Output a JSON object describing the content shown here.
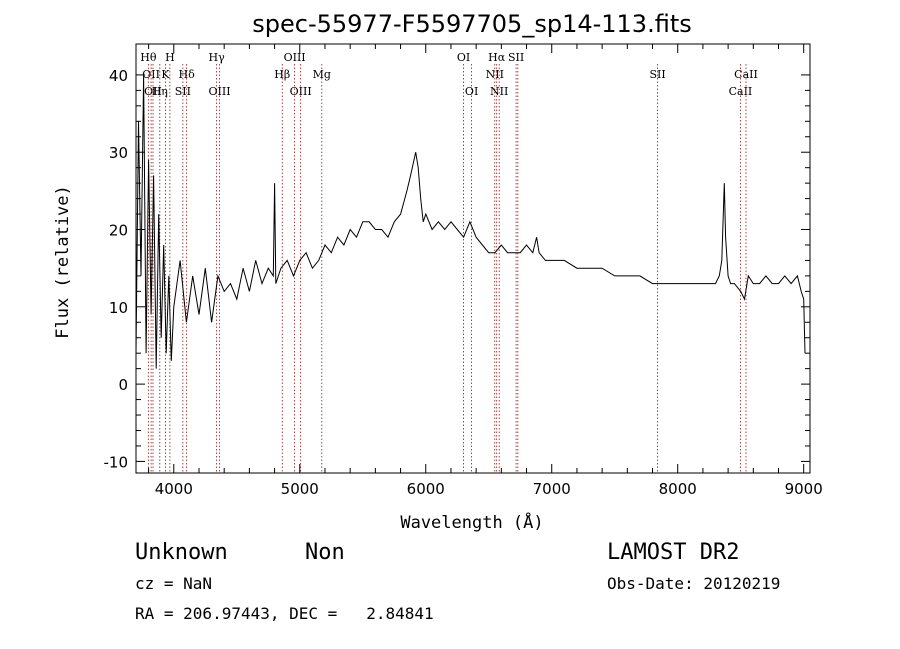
{
  "chart_data": {
    "type": "line",
    "title": "spec-55977-F5597705_sp14-113.fits",
    "xlabel": "Wavelength (Å)",
    "ylabel": "Flux (relative)",
    "xlim": [
      3700,
      9050
    ],
    "ylim": [
      -11.5,
      44
    ],
    "x_ticks": [
      4000,
      5000,
      6000,
      7000,
      8000,
      9000
    ],
    "y_ticks": [
      -10,
      0,
      10,
      20,
      30,
      40
    ],
    "grid": false,
    "line_color": "#000000",
    "marker_color": "#8b1a1a",
    "series": [
      {
        "x": [
          3700,
          3720,
          3740,
          3760,
          3780,
          3800,
          3820,
          3840,
          3860,
          3880,
          3900,
          3920,
          3940,
          3960,
          3980,
          4000,
          4050,
          4100,
          4150,
          4200,
          4250,
          4300,
          4350,
          4400,
          4450,
          4500,
          4550,
          4600,
          4650,
          4700,
          4750,
          4790,
          4800,
          4810,
          4850,
          4900,
          4950,
          5000,
          5050,
          5100,
          5150,
          5200,
          5250,
          5300,
          5350,
          5400,
          5450,
          5500,
          5550,
          5600,
          5650,
          5700,
          5750,
          5800,
          5850,
          5880,
          5920,
          5940,
          5960,
          5980,
          6000,
          6050,
          6100,
          6150,
          6200,
          6250,
          6300,
          6350,
          6400,
          6450,
          6500,
          6550,
          6600,
          6650,
          6700,
          6750,
          6800,
          6850,
          6880,
          6900,
          6950,
          7000,
          7100,
          7200,
          7300,
          7400,
          7500,
          7600,
          7700,
          7800,
          7900,
          8000,
          8100,
          8200,
          8250,
          8300,
          8330,
          8350,
          8370,
          8380,
          8400,
          8420,
          8450,
          8500,
          8530,
          8560,
          8600,
          8650,
          8700,
          8750,
          8800,
          8850,
          8900,
          8950,
          8980,
          9000,
          9010
        ],
        "y": [
          4,
          34,
          14,
          40,
          4,
          29,
          9,
          27,
          2,
          22,
          6,
          18,
          4,
          14,
          3,
          10,
          16,
          8,
          14,
          9,
          15,
          8,
          14,
          12,
          13,
          11,
          15,
          12,
          16,
          13,
          15,
          14,
          26,
          13,
          15,
          16,
          14,
          16,
          17,
          15,
          16,
          18,
          17,
          19,
          18,
          20,
          19,
          21,
          21,
          20,
          20,
          19,
          21,
          22,
          25,
          27,
          30,
          28,
          24,
          21,
          22,
          20,
          21,
          20,
          21,
          20,
          19,
          21,
          19,
          18,
          17,
          17,
          18,
          17,
          17,
          17,
          18,
          17,
          19,
          17,
          16,
          16,
          16,
          15,
          15,
          15,
          14,
          14,
          14,
          13,
          13,
          13,
          13,
          13,
          13,
          13,
          14,
          16,
          26,
          19,
          14,
          13,
          13,
          12,
          11,
          14,
          13,
          13,
          14,
          13,
          13,
          14,
          13,
          14,
          12,
          11,
          4
        ]
      }
    ],
    "line_markers": [
      {
        "wl": 3798,
        "label": "Hθ",
        "row": 1
      },
      {
        "wl": 3820,
        "label": "OII",
        "row": 2
      },
      {
        "wl": 3835,
        "label": "OII",
        "row": 3
      },
      {
        "wl": 3889,
        "label": "Hη",
        "row": 3
      },
      {
        "wl": 3934,
        "label": "K",
        "row": 2
      },
      {
        "wl": 3969,
        "label": "H",
        "row": 1
      },
      {
        "wl": 4072,
        "label": "SII",
        "row": 3
      },
      {
        "wl": 4102,
        "label": "Hδ",
        "row": 2
      },
      {
        "wl": 4340,
        "label": "Hγ",
        "row": 1
      },
      {
        "wl": 4363,
        "label": "OIII",
        "row": 3
      },
      {
        "wl": 4861,
        "label": "Hβ",
        "row": 2
      },
      {
        "wl": 4959,
        "label": "OIII",
        "row": 1
      },
      {
        "wl": 5007,
        "label": "OIII",
        "row": 3
      },
      {
        "wl": 5175,
        "label": "Mg",
        "row": 2
      },
      {
        "wl": 6300,
        "label": "OI",
        "row": 1
      },
      {
        "wl": 6364,
        "label": "OI",
        "row": 3
      },
      {
        "wl": 6548,
        "label": "NII",
        "row": 2
      },
      {
        "wl": 6563,
        "label": "Hα",
        "row": 1
      },
      {
        "wl": 6583,
        "label": "NII",
        "row": 3
      },
      {
        "wl": 6717,
        "label": "SII",
        "row": 1
      },
      {
        "wl": 6731,
        "label": "",
        "row": 1
      },
      {
        "wl": 7840,
        "label": "SII",
        "row": 2
      },
      {
        "wl": 8498,
        "label": "CaII",
        "row": 3
      },
      {
        "wl": 8542,
        "label": "CaII",
        "row": 2
      }
    ]
  },
  "info": {
    "class": "Unknown",
    "subclass": "Non",
    "survey": "LAMOST DR2",
    "cz": "cz = NaN",
    "obs_date": "Obs-Date: 20120219",
    "coords": "RA = 206.97443, DEC =   2.84841"
  }
}
